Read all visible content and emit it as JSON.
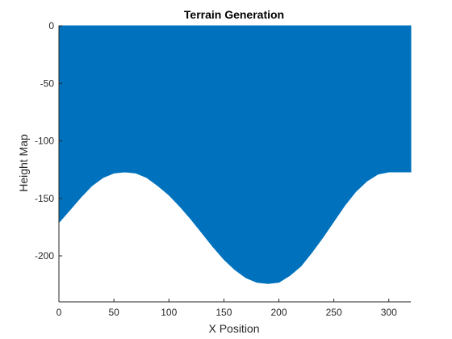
{
  "chart_data": {
    "type": "area",
    "title": "Terrain Generation",
    "xlabel": "X Position",
    "ylabel": "Height Map",
    "xlim": [
      0,
      320
    ],
    "ylim": [
      -240,
      0
    ],
    "xticks": [
      0,
      50,
      100,
      150,
      200,
      250,
      300
    ],
    "yticks": [
      0,
      -50,
      -100,
      -150,
      -200
    ],
    "grid": false,
    "fill_color": "#0072BD",
    "axis_color": "#262626",
    "series": [
      {
        "fill_top": 0,
        "x": [
          0,
          10,
          20,
          30,
          40,
          50,
          60,
          70,
          80,
          90,
          100,
          110,
          120,
          130,
          140,
          150,
          160,
          170,
          180,
          190,
          200,
          210,
          220,
          230,
          240,
          250,
          260,
          270,
          280,
          290,
          300,
          310,
          320
        ],
        "y": [
          -171,
          -160,
          -149,
          -139,
          -132,
          -128,
          -127,
          -128,
          -132,
          -139,
          -147,
          -157,
          -168,
          -180,
          -192,
          -203,
          -212,
          -219,
          -223,
          -224,
          -223,
          -217,
          -209,
          -197,
          -184,
          -170,
          -156,
          -144,
          -135,
          -129,
          -127,
          -127,
          -127
        ]
      }
    ]
  }
}
